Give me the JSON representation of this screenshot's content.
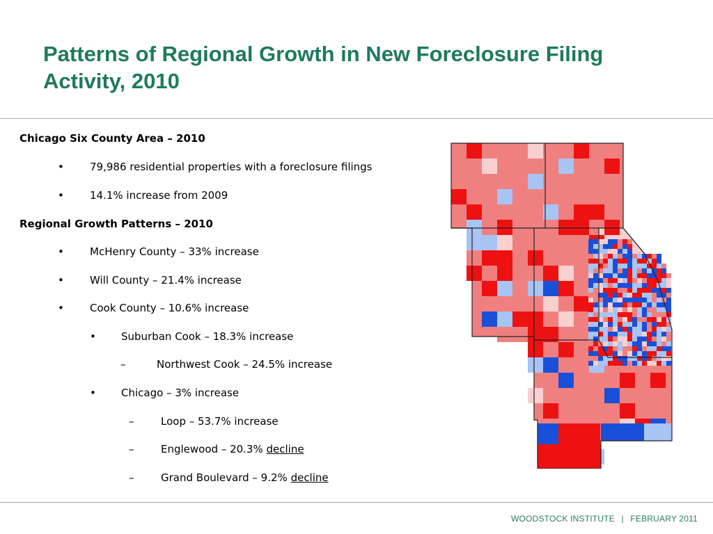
{
  "slide": {
    "title_line1": "Patterns of Regional Growth in New Foreclosure Filing",
    "title_line2": "Activity, 2010"
  },
  "body": {
    "section1_heading": "Chicago Six County Area – 2010",
    "section1_items": [
      "79,986 residential properties with a foreclosure filings",
      "14.1% increase from 2009"
    ],
    "section2_heading": "Regional Growth Patterns – 2010",
    "county_items": [
      "McHenry County – 33% increase",
      "Will County – 21.4% increase",
      "Cook County – 10.6% increase"
    ],
    "suburban_cook": "Suburban Cook – 18.3% increase",
    "northwest_cook": "Northwest Cook – 24.5% increase",
    "chicago": "Chicago – 3% increase",
    "loop": "Loop – 53.7% increase",
    "englewood_prefix": "Englewood – 20.3% ",
    "englewood_word": "decline",
    "grand_blvd_prefix": "Grand Boulevard – 9.2% ",
    "grand_blvd_word": "decline",
    "bullet_symbol": "•",
    "dash_symbol": "–"
  },
  "footer": {
    "org": "WOODSTOCK INSTITUTE",
    "separator": "|",
    "date": "FEBRUARY 2011"
  },
  "map": {
    "colors": {
      "strong_increase": "#ee1111",
      "increase": "#f08080",
      "slight_increase": "#f9d0d0",
      "slight_decline": "#a8c4f4",
      "strong_decline": "#1a4fd8"
    }
  }
}
